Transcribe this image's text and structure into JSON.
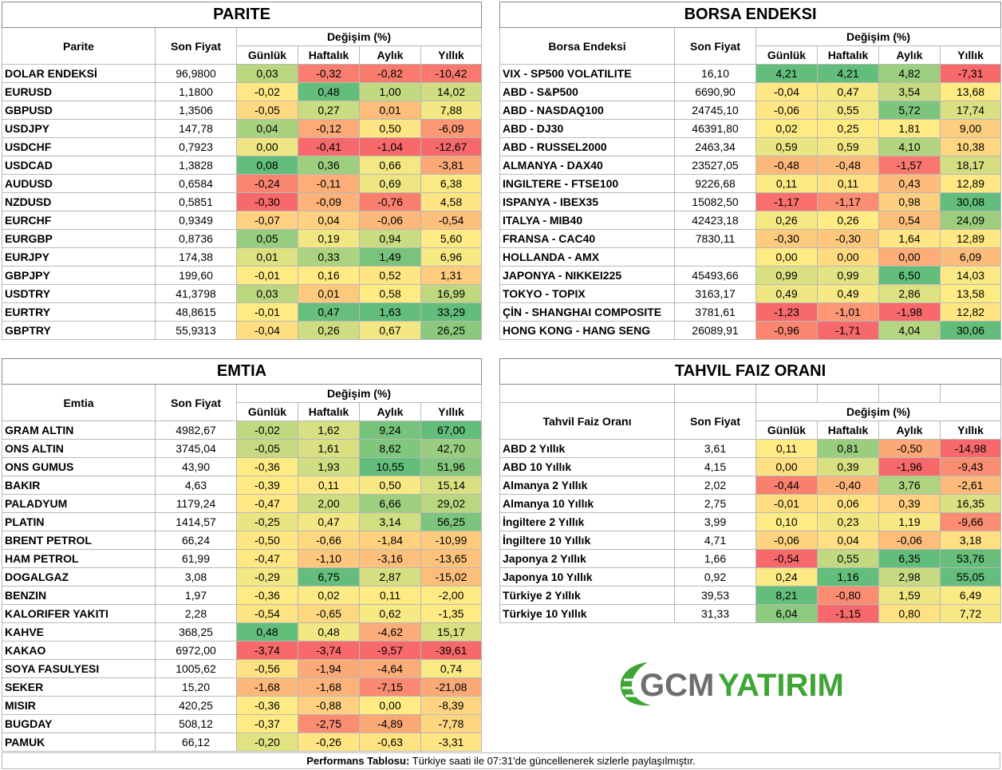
{
  "parite": {
    "title": "PARITE",
    "col_name": "Parite",
    "col_price": "Son Fiyat",
    "col_change": "Değişim (%)",
    "periods": [
      "Günlük",
      "Haftalık",
      "Aylık",
      "Yıllık"
    ],
    "rows": [
      {
        "name": "DOLAR ENDEKSİ",
        "price": "96,9800",
        "vals": [
          0.03,
          -0.32,
          -0.82,
          -10.42
        ]
      },
      {
        "name": "EURUSD",
        "price": "1,1800",
        "vals": [
          -0.02,
          0.48,
          1.0,
          14.02
        ]
      },
      {
        "name": "GBPUSD",
        "price": "1,3506",
        "vals": [
          -0.05,
          0.27,
          0.01,
          7.88
        ]
      },
      {
        "name": "USDJPY",
        "price": "147,78",
        "vals": [
          0.04,
          -0.12,
          0.5,
          -6.09
        ]
      },
      {
        "name": "USDCHF",
        "price": "0,7923",
        "vals": [
          0.0,
          -0.41,
          -1.04,
          -12.67
        ]
      },
      {
        "name": "USDCAD",
        "price": "1,3828",
        "vals": [
          0.08,
          0.36,
          0.66,
          -3.81
        ]
      },
      {
        "name": "AUDUSD",
        "price": "0,6584",
        "vals": [
          -0.24,
          -0.11,
          0.69,
          6.38
        ]
      },
      {
        "name": "NZDUSD",
        "price": "0,5851",
        "vals": [
          -0.3,
          -0.09,
          -0.76,
          4.58
        ]
      },
      {
        "name": "EURCHF",
        "price": "0,9349",
        "vals": [
          -0.07,
          0.04,
          -0.06,
          -0.54
        ]
      },
      {
        "name": "EURGBP",
        "price": "0,8736",
        "vals": [
          0.05,
          0.19,
          0.94,
          5.6
        ]
      },
      {
        "name": "EURJPY",
        "price": "174,38",
        "vals": [
          0.01,
          0.33,
          1.49,
          6.96
        ]
      },
      {
        "name": "GBPJPY",
        "price": "199,60",
        "vals": [
          -0.01,
          0.16,
          0.52,
          1.31
        ]
      },
      {
        "name": "USDTRY",
        "price": "41,3798",
        "vals": [
          0.03,
          0.01,
          0.58,
          16.99
        ]
      },
      {
        "name": "EURTRY",
        "price": "48,8615",
        "vals": [
          -0.01,
          0.47,
          1.63,
          33.29
        ]
      },
      {
        "name": "GBPTRY",
        "price": "55,9313",
        "vals": [
          -0.04,
          0.26,
          0.67,
          26.25
        ]
      }
    ]
  },
  "borsa": {
    "title": "BORSA ENDEKSI",
    "col_name": "Borsa Endeksi",
    "col_price": "Son Fiyat",
    "col_change": "Değişim (%)",
    "periods": [
      "Günlük",
      "Haftalık",
      "Aylık",
      "Yıllık"
    ],
    "rows": [
      {
        "name": "VIX  - SP500 VOLATILITE",
        "price": "16,10",
        "vals": [
          4.21,
          4.21,
          4.82,
          -7.31
        ]
      },
      {
        "name": "ABD - S&P500",
        "price": "6690,90",
        "vals": [
          -0.04,
          0.47,
          3.54,
          13.68
        ]
      },
      {
        "name": "ABD - NASDAQ100",
        "price": "24745,10",
        "vals": [
          -0.06,
          0.55,
          5.72,
          17.74
        ]
      },
      {
        "name": "ABD - DJ30",
        "price": "46391,80",
        "vals": [
          0.02,
          0.25,
          1.81,
          9.0
        ]
      },
      {
        "name": "ABD - RUSSEL2000",
        "price": "2463,34",
        "vals": [
          0.59,
          0.59,
          4.1,
          10.38
        ]
      },
      {
        "name": "ALMANYA - DAX40",
        "price": "23527,05",
        "vals": [
          -0.48,
          -0.48,
          -1.57,
          18.17
        ]
      },
      {
        "name": "INGILTERE - FTSE100",
        "price": "9226,68",
        "vals": [
          0.11,
          0.11,
          0.43,
          12.89
        ]
      },
      {
        "name": "ISPANYA - IBEX35",
        "price": "15082,50",
        "vals": [
          -1.17,
          -1.17,
          0.98,
          30.08
        ]
      },
      {
        "name": "ITALYA - MIB40",
        "price": "42423,18",
        "vals": [
          0.26,
          0.26,
          0.54,
          24.09
        ]
      },
      {
        "name": "FRANSA - CAC40",
        "price": "7830,11",
        "vals": [
          -0.3,
          -0.3,
          1.64,
          12.89
        ]
      },
      {
        "name": "HOLLANDA - AMX",
        "price": "",
        "vals": [
          0.0,
          0.0,
          0.0,
          6.09
        ]
      },
      {
        "name": "JAPONYA - NIKKEI225",
        "price": "45493,66",
        "vals": [
          0.99,
          0.99,
          6.5,
          14.03
        ]
      },
      {
        "name": "TOKYO - TOPIX",
        "price": "3163,17",
        "vals": [
          0.49,
          0.49,
          2.86,
          13.58
        ]
      },
      {
        "name": "ÇİN - SHANGHAI COMPOSITE",
        "price": "3781,61",
        "vals": [
          -1.23,
          -1.01,
          -1.98,
          12.82
        ]
      },
      {
        "name": "HONG KONG - HANG SENG",
        "price": "26089,91",
        "vals": [
          -0.96,
          -1.71,
          4.04,
          30.06
        ]
      }
    ]
  },
  "emtia": {
    "title": "EMTIA",
    "col_name": "Emtia",
    "col_price": "Son Fiyat",
    "col_change": "Değişim (%)",
    "periods": [
      "Günlük",
      "Haftalık",
      "Aylık",
      "Yıllık"
    ],
    "rows": [
      {
        "name": "GRAM ALTIN",
        "price": "4982,67",
        "vals": [
          -0.02,
          1.62,
          9.24,
          67.0
        ]
      },
      {
        "name": "ONS ALTIN",
        "price": "3745,04",
        "vals": [
          -0.05,
          1.61,
          8.62,
          42.7
        ]
      },
      {
        "name": "ONS GUMUS",
        "price": "43,90",
        "vals": [
          -0.36,
          1.93,
          10.55,
          51.96
        ]
      },
      {
        "name": "BAKIR",
        "price": "4,63",
        "vals": [
          -0.39,
          0.11,
          0.5,
          15.14
        ]
      },
      {
        "name": "PALADYUM",
        "price": "1179,24",
        "vals": [
          -0.47,
          2.0,
          6.66,
          29.02
        ]
      },
      {
        "name": "PLATIN",
        "price": "1414,57",
        "vals": [
          -0.25,
          0.47,
          3.14,
          56.25
        ]
      },
      {
        "name": "BRENT PETROL",
        "price": "66,24",
        "vals": [
          -0.5,
          -0.66,
          -1.84,
          -10.99
        ]
      },
      {
        "name": "HAM PETROL",
        "price": "61,99",
        "vals": [
          -0.47,
          -1.1,
          -3.16,
          -13.65
        ]
      },
      {
        "name": "DOGALGAZ",
        "price": "3,08",
        "vals": [
          -0.29,
          6.75,
          2.87,
          -15.02
        ]
      },
      {
        "name": "BENZIN",
        "price": "1,97",
        "vals": [
          -0.36,
          0.02,
          0.11,
          -2.0
        ]
      },
      {
        "name": "KALORIFER YAKITI",
        "price": "2,28",
        "vals": [
          -0.54,
          -0.65,
          0.62,
          -1.35
        ]
      },
      {
        "name": "KAHVE",
        "price": "368,25",
        "vals": [
          0.48,
          0.48,
          -4.62,
          15.17
        ]
      },
      {
        "name": "KAKAO",
        "price": "6972,00",
        "vals": [
          -3.74,
          -3.74,
          -9.57,
          -39.61
        ]
      },
      {
        "name": "SOYA FASULYESI",
        "price": "1005,62",
        "vals": [
          -0.56,
          -1.94,
          -4.64,
          0.74
        ]
      },
      {
        "name": "SEKER",
        "price": "15,20",
        "vals": [
          -1.68,
          -1.68,
          -7.15,
          -21.08
        ]
      },
      {
        "name": "MISIR",
        "price": "420,25",
        "vals": [
          -0.36,
          -0.88,
          0.0,
          -8.39
        ]
      },
      {
        "name": "BUGDAY",
        "price": "508,12",
        "vals": [
          -0.37,
          -2.75,
          -4.89,
          -7.78
        ]
      },
      {
        "name": "PAMUK",
        "price": "66,12",
        "vals": [
          -0.2,
          -0.26,
          -0.63,
          -3.31
        ]
      }
    ]
  },
  "tahvil": {
    "title": "TAHVIL FAIZ ORANI",
    "col_name": "Tahvil Faiz Oranı",
    "col_price": "Son Fiyat",
    "col_change": "Değişim (%)",
    "periods": [
      "Günlük",
      "Haftalık",
      "Aylık",
      "Yıllık"
    ],
    "rows": [
      {
        "name": "ABD 2 Yıllık",
        "price": "3,61",
        "vals": [
          0.11,
          0.81,
          -0.5,
          -14.98
        ]
      },
      {
        "name": "ABD 10 Yıllık",
        "price": "4,15",
        "vals": [
          0.0,
          0.39,
          -1.96,
          -9.43
        ]
      },
      {
        "name": "Almanya 2 Yıllık",
        "price": "2,02",
        "vals": [
          -0.44,
          -0.4,
          3.76,
          -2.61
        ]
      },
      {
        "name": "Almanya 10 Yıllık",
        "price": "2,75",
        "vals": [
          -0.01,
          0.06,
          0.39,
          16.35
        ]
      },
      {
        "name": "İngiltere 2 Yıllık",
        "price": "3,99",
        "vals": [
          0.1,
          0.23,
          1.19,
          -9.66
        ]
      },
      {
        "name": "İngiltere 10 Yıllık",
        "price": "4,71",
        "vals": [
          -0.06,
          0.04,
          -0.06,
          3.18
        ]
      },
      {
        "name": "Japonya 2 Yıllık",
        "price": "1,66",
        "vals": [
          -0.54,
          0.55,
          6.35,
          53.76
        ]
      },
      {
        "name": "Japonya 10 Yıllık",
        "price": "0,92",
        "vals": [
          0.24,
          1.16,
          2.98,
          55.05
        ]
      },
      {
        "name": "Türkiye 2 Yıllık",
        "price": "39,53",
        "vals": [
          8.21,
          -0.8,
          1.59,
          6.49
        ]
      },
      {
        "name": "Türkiye 10 Yıllık",
        "price": "31,33",
        "vals": [
          6.04,
          -1.15,
          0.8,
          7.72
        ]
      }
    ]
  },
  "colors": {
    "red": "#f8696b",
    "yellow": "#ffeb84",
    "green": "#63be7b",
    "logo_green": "#3fa535",
    "logo_gray": "#6d6e71"
  },
  "logo": {
    "part1": "GCM",
    "part2": "YATIRIM"
  },
  "footer": {
    "bold": "Performans Tablosu:",
    "text": " Türkiye saati ile 07:31'de güncellenerek sizlerle paylaşılmıştır."
  }
}
